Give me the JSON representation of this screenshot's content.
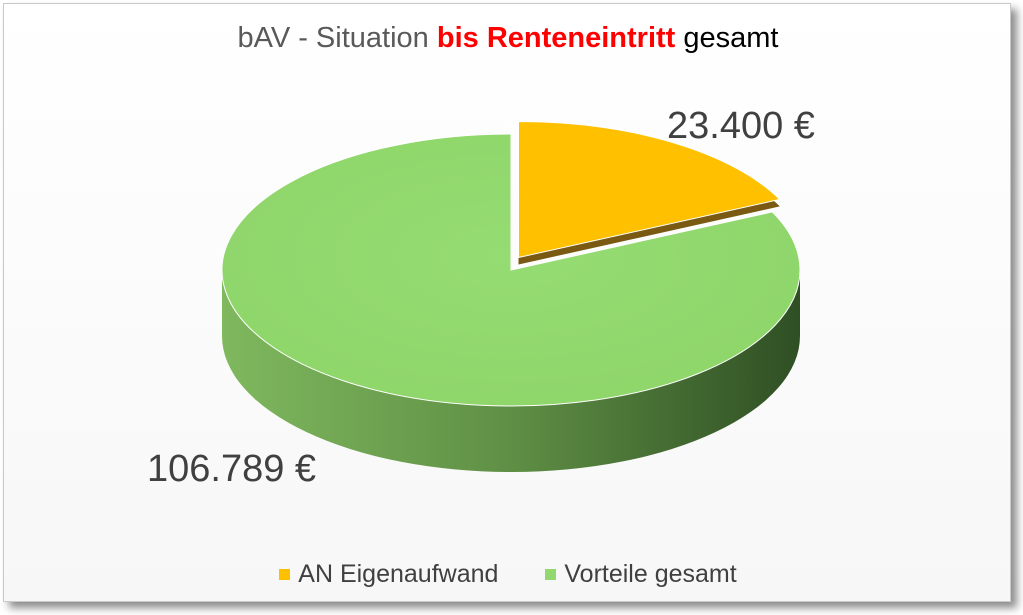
{
  "chart_data": {
    "type": "pie",
    "title": {
      "prefix": "bAV - Situation ",
      "highlight": "bis Renteneintritt",
      "suffix": " gesamt"
    },
    "slices": [
      {
        "label": "AN Eigenaufwand",
        "value": 23400,
        "value_label": "23.400 €",
        "color": "#FFC000",
        "exploded": true
      },
      {
        "label": "Vorteile gesamt",
        "value": 106789,
        "value_label": "106.789 €",
        "color": "#92D86E",
        "exploded": false
      }
    ],
    "legend_position": "bottom",
    "three_d": true
  }
}
